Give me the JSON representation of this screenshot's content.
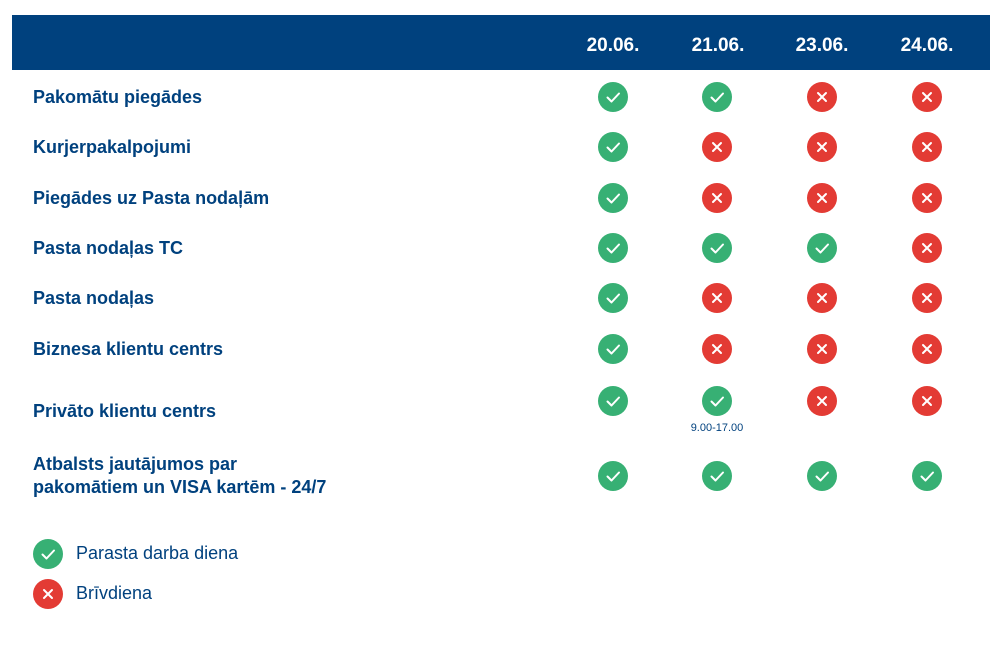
{
  "header": {
    "dates": [
      "20.06.",
      "21.06.",
      "23.06.",
      "24.06."
    ]
  },
  "rows": [
    {
      "label": [
        "Pakomātu piegādes"
      ],
      "status": [
        "check",
        "check",
        "cross",
        "cross"
      ]
    },
    {
      "label": [
        "Kurjerpakalpojumi"
      ],
      "status": [
        "check",
        "cross",
        "cross",
        "cross"
      ]
    },
    {
      "label": [
        "Piegādes uz Pasta nodaļām"
      ],
      "status": [
        "check",
        "cross",
        "cross",
        "cross"
      ]
    },
    {
      "label": [
        "Pasta nodaļas TC"
      ],
      "status": [
        "check",
        "check",
        "check",
        "cross"
      ]
    },
    {
      "label": [
        "Pasta nodaļas"
      ],
      "status": [
        "check",
        "cross",
        "cross",
        "cross"
      ]
    },
    {
      "label": [
        "Biznesa klientu centrs"
      ],
      "status": [
        "check",
        "cross",
        "cross",
        "cross"
      ]
    },
    {
      "label": [
        "Privāto klientu centrs"
      ],
      "status": [
        "check",
        "check",
        "cross",
        "cross"
      ],
      "note": {
        "col": 1,
        "text": "9.00-17.00"
      }
    },
    {
      "label": [
        "Atbalsts jautājumos par",
        "pakomātiem un VISA kartēm - 24/7"
      ],
      "status": [
        "check",
        "check",
        "check",
        "check"
      ]
    }
  ],
  "legend": [
    {
      "icon": "check-icon",
      "label": "Parasta darba diena"
    },
    {
      "icon": "cross-icon",
      "label": "Brīvdiena"
    }
  ],
  "colors": {
    "header": "#00417e",
    "check": "#37b074",
    "cross": "#e33b34",
    "text": "#00417e"
  }
}
